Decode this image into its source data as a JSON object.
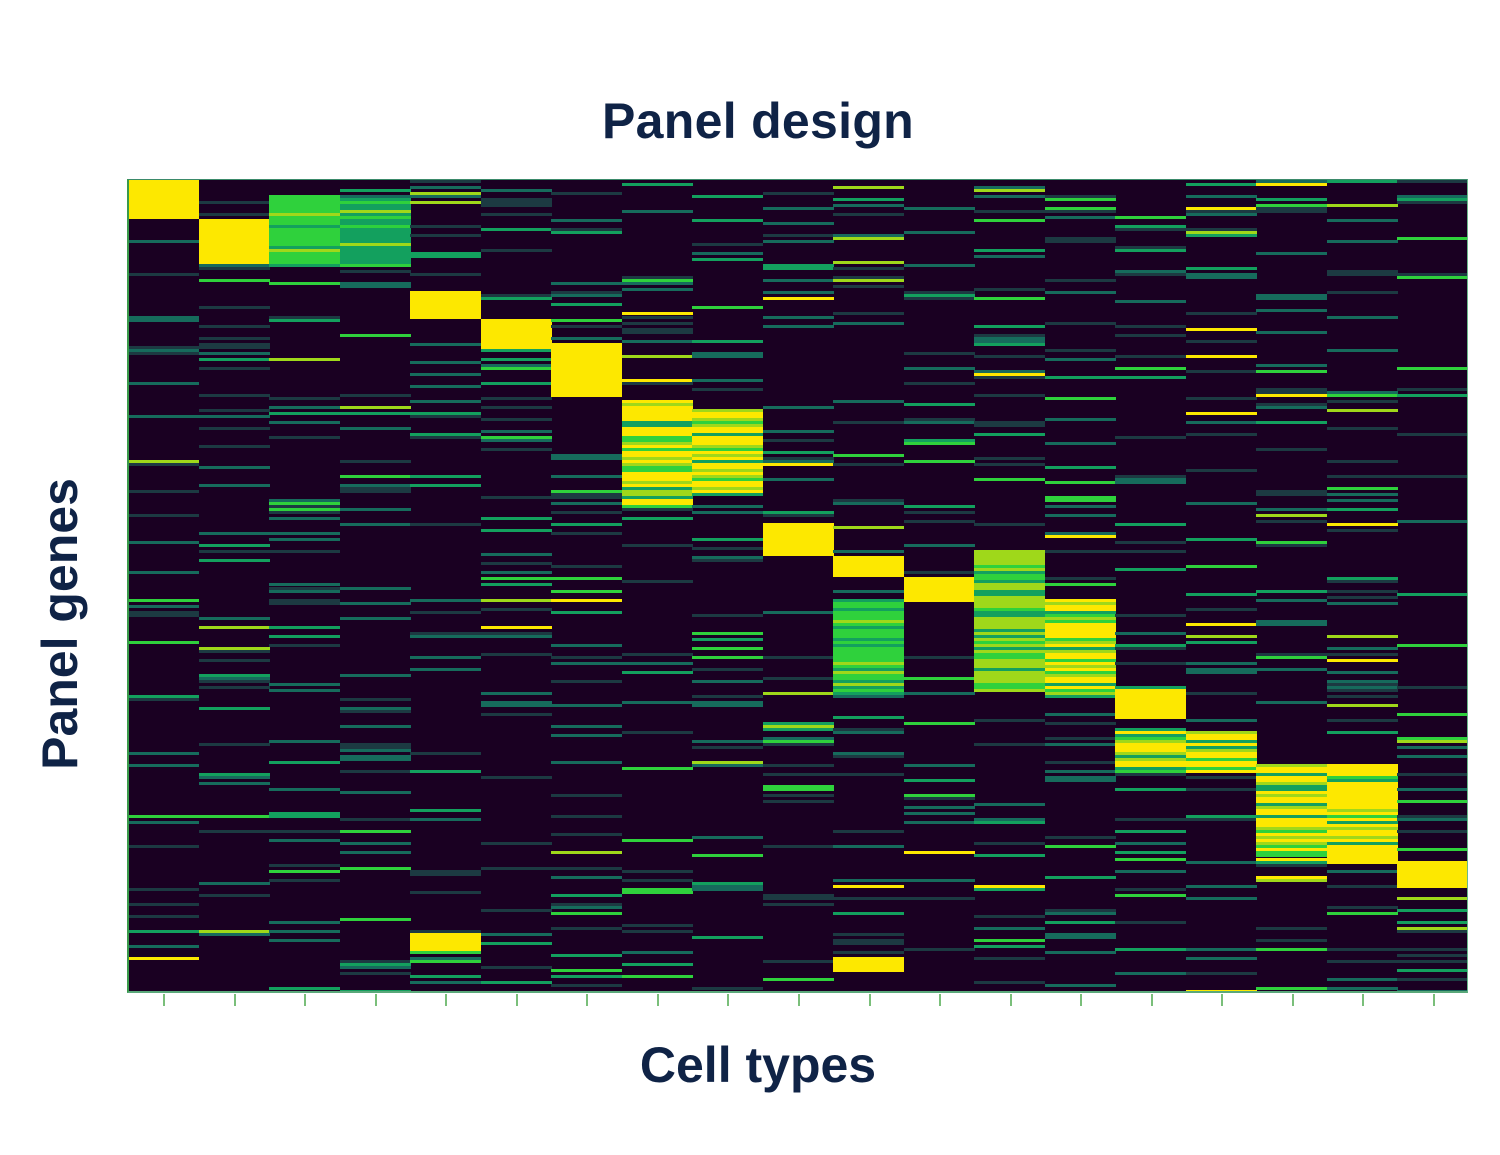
{
  "chart_data": {
    "type": "heatmap",
    "title": "Panel design",
    "xlabel": "Cell types",
    "ylabel": "Panel genes",
    "n_columns": 19,
    "n_rows": 270,
    "x_tick_labels": [],
    "y_tick_labels": [],
    "colormap": {
      "background": "#1a0022",
      "levels": {
        "0": "#1a0022",
        "1": "#1c3a42",
        "2": "#166b5c",
        "3": "#13a05e",
        "4": "#2fd13c",
        "5": "#9fd81a",
        "6": "#fde800"
      }
    },
    "marker_blocks": [
      {
        "col": 0,
        "row_start": 0,
        "row_end": 12,
        "level": 6
      },
      {
        "col": 1,
        "row_start": 13,
        "row_end": 27,
        "level": 6
      },
      {
        "col": 2,
        "row_start": 5,
        "row_end": 28,
        "level": 4,
        "mixed": true
      },
      {
        "col": 3,
        "row_start": 6,
        "row_end": 28,
        "level": 3,
        "mixed": true
      },
      {
        "col": 4,
        "row_start": 37,
        "row_end": 45,
        "level": 6
      },
      {
        "col": 4,
        "row_start": 250,
        "row_end": 255,
        "level": 6
      },
      {
        "col": 5,
        "row_start": 46,
        "row_end": 55,
        "level": 6
      },
      {
        "col": 6,
        "row_start": 54,
        "row_end": 71,
        "level": 6
      },
      {
        "col": 7,
        "row_start": 73,
        "row_end": 108,
        "level": 6,
        "mixed": true
      },
      {
        "col": 8,
        "row_start": 76,
        "row_end": 104,
        "level": 6,
        "mixed": true
      },
      {
        "col": 9,
        "row_start": 114,
        "row_end": 124,
        "level": 6
      },
      {
        "col": 10,
        "row_start": 125,
        "row_end": 131,
        "level": 6
      },
      {
        "col": 10,
        "row_start": 139,
        "row_end": 170,
        "level": 4,
        "mixed": true
      },
      {
        "col": 10,
        "row_start": 258,
        "row_end": 261,
        "level": 6
      },
      {
        "col": 11,
        "row_start": 132,
        "row_end": 139,
        "level": 6
      },
      {
        "col": 12,
        "row_start": 123,
        "row_end": 169,
        "level": 5,
        "mixed": true
      },
      {
        "col": 13,
        "row_start": 139,
        "row_end": 171,
        "level": 6,
        "mixed": true
      },
      {
        "col": 14,
        "row_start": 169,
        "row_end": 178,
        "level": 6
      },
      {
        "col": 14,
        "row_start": 183,
        "row_end": 194,
        "level": 6,
        "mixed": true
      },
      {
        "col": 15,
        "row_start": 183,
        "row_end": 196,
        "level": 6,
        "mixed": true
      },
      {
        "col": 16,
        "row_start": 194,
        "row_end": 226,
        "level": 6,
        "mixed": true
      },
      {
        "col": 17,
        "row_start": 194,
        "row_end": 226,
        "level": 6,
        "mixed": true
      },
      {
        "col": 18,
        "row_start": 226,
        "row_end": 234,
        "level": 6
      }
    ],
    "scatter_density": 0.16,
    "grid": false,
    "legend": null
  }
}
